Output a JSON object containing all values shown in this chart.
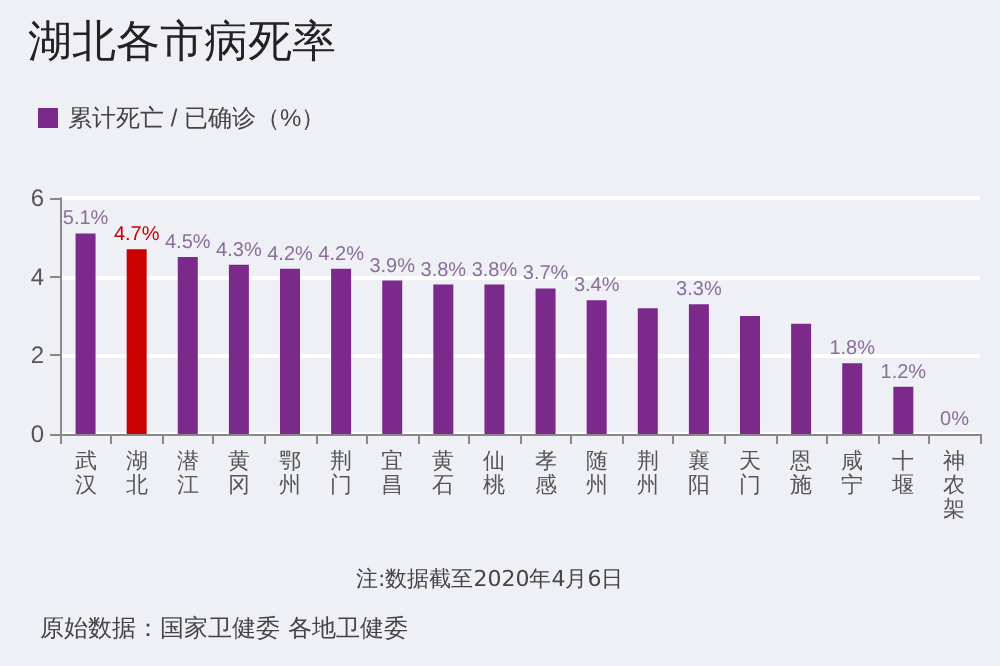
{
  "chart_data": {
    "type": "bar",
    "title": "湖北各市病死率",
    "categories": [
      "武汉",
      "湖北",
      "潜江",
      "黄冈",
      "鄂州",
      "荆门",
      "宜昌",
      "黄石",
      "仙桃",
      "孝感",
      "随州",
      "荆州",
      "襄阳",
      "天门",
      "恩施",
      "咸宁",
      "十堰",
      "神农架"
    ],
    "series": [
      {
        "name": "累计死亡 / 已确诊（%）",
        "color": "#7b2a8c",
        "colors": [
          "#7b2a8c",
          "#cc0000",
          "#7b2a8c",
          "#7b2a8c",
          "#7b2a8c",
          "#7b2a8c",
          "#7b2a8c",
          "#7b2a8c",
          "#7b2a8c",
          "#7b2a8c",
          "#7b2a8c",
          "#7b2a8c",
          "#7b2a8c",
          "#7b2a8c",
          "#7b2a8c",
          "#7b2a8c",
          "#7b2a8c",
          "#7b2a8c"
        ],
        "values": [
          5.1,
          4.7,
          4.5,
          4.3,
          4.2,
          4.2,
          3.9,
          3.8,
          3.8,
          3.7,
          3.4,
          3.2,
          3.3,
          3.0,
          2.8,
          1.8,
          1.2,
          0
        ],
        "value_labels": [
          "5.1%",
          "4.7%",
          "4.5%",
          "4.3%",
          "4.2%",
          "4.2%",
          "3.9%",
          "3.8%",
          "3.8%",
          "3.7%",
          "3.4%",
          null,
          "3.3%",
          null,
          null,
          "1.8%",
          "1.2%",
          "0%"
        ]
      }
    ],
    "ylim": [
      0,
      6
    ],
    "yticks": [
      0,
      2,
      4,
      6
    ],
    "grid": "y",
    "legend": "top left",
    "annotations": [
      "注:数据截至2020年4月6日",
      "原始数据：国家卫健委 各地卫健委"
    ]
  }
}
